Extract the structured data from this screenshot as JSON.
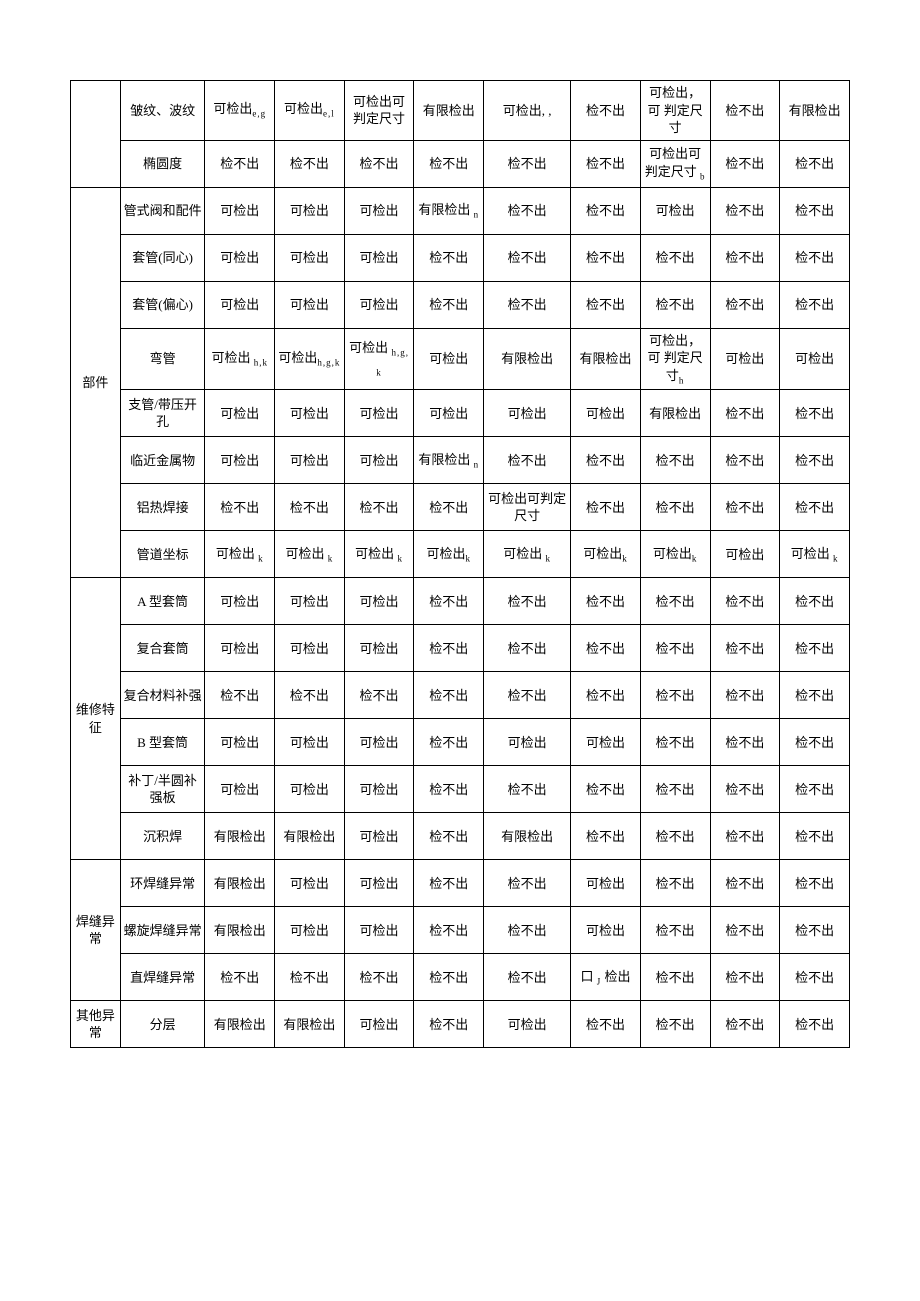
{
  "groups": [
    {
      "category": "",
      "rows": [
        {
          "name": "皱纹、波纹",
          "cells": [
            "可检出<span class='sup'>e,g</span>",
            "可检出<span class='sup'>e,l</span>",
            "可检出可判定尺寸",
            "有限检出",
            "可检出, ,",
            "检不出",
            "可检出，可 判定尺寸",
            "检不出",
            "有限检出"
          ]
        },
        {
          "name": "椭圆度",
          "cells": [
            "检不出",
            "检不出",
            "检不出",
            "检不出",
            "检不出",
            "检不出",
            "可检出可判定尺寸<span class='sup'> b</span>",
            "检不出",
            "检不出"
          ]
        }
      ]
    },
    {
      "category": "部件",
      "rows": [
        {
          "name": "管式阀和配件",
          "cells": [
            "可检出",
            "可检出",
            "可检出",
            "有限检出<span class='sup'> n</span>",
            "检不出",
            "检不出",
            "可检出",
            "检不出",
            "检不出"
          ]
        },
        {
          "name": "套管(同心)",
          "cells": [
            "可检出",
            "可检出",
            "可检出",
            "检不出",
            "检不出",
            "检不出",
            "检不出",
            "检不出",
            "检不出"
          ]
        },
        {
          "name": "套管(偏心)",
          "cells": [
            "可检出",
            "可检出",
            "可检出",
            "检不出",
            "检不出",
            "检不出",
            "检不出",
            "检不出",
            "检不出"
          ]
        },
        {
          "name": "弯管",
          "cells": [
            "可检出<span class='sup'> h,k</span>",
            "可检出<span class='sup'>h,g,k</span>",
            "可检出<span class='sup'> h,g,k</span>",
            "可检出",
            "有限检出",
            "有限检出",
            "可检出，可 判定尺寸<span class='sup'>h</span>",
            "可检出",
            "可检出"
          ]
        },
        {
          "name": "支管/带压开孔",
          "cells": [
            "可检出",
            "可检出",
            "可检出",
            "可检出",
            "可检出",
            "可检出",
            "有限检出",
            "检不出",
            "检不出"
          ]
        },
        {
          "name": "临近金属物",
          "cells": [
            "可检出",
            "可检出",
            "可检出",
            "有限检出<span class='sup'> n</span>",
            "检不出",
            "检不出",
            "检不出",
            "检不出",
            "检不出"
          ]
        },
        {
          "name": "铝热焊接",
          "cells": [
            "检不出",
            "检不出",
            "检不出",
            "检不出",
            "可检出可判定尺寸",
            "检不出",
            "检不出",
            "检不出",
            "检不出"
          ]
        },
        {
          "name": "管道坐标",
          "cells": [
            "可检出<span class='sup'> k</span>",
            "可检出<span class='sup'> k</span>",
            "可检出<span class='sup'> k</span>",
            "可检出<span class='sup'>k</span>",
            "可检出<span class='sup'> k</span>",
            "可检出<span class='sup'>k</span>",
            "可检出<span class='sup'>k</span>",
            "可检出",
            "可检出<span class='sup'> k</span>"
          ]
        }
      ]
    },
    {
      "category": "维修特征",
      "rows": [
        {
          "name": "A 型套筒",
          "cells": [
            "可检出",
            "可检出",
            "可检出",
            "检不出",
            "检不出",
            "检不出",
            "检不出",
            "检不出",
            "检不出"
          ]
        },
        {
          "name": "复合套筒",
          "cells": [
            "可检出",
            "可检出",
            "可检出",
            "检不出",
            "检不出",
            "检不出",
            "检不出",
            "检不出",
            "检不出"
          ]
        },
        {
          "name": "复合材料补强",
          "cells": [
            "检不出",
            "检不出",
            "检不出",
            "检不出",
            "检不出",
            "检不出",
            "检不出",
            "检不出",
            "检不出"
          ]
        },
        {
          "name": "B 型套筒",
          "cells": [
            "可检出",
            "可检出",
            "可检出",
            "检不出",
            "可检出",
            "可检出",
            "检不出",
            "检不出",
            "检不出"
          ]
        },
        {
          "name": "补丁/半圆补强板",
          "cells": [
            "可检出",
            "可检出",
            "可检出",
            "检不出",
            "检不出",
            "检不出",
            "检不出",
            "检不出",
            "检不出"
          ]
        },
        {
          "name": "沉积焊",
          "cells": [
            "有限检出",
            "有限检出",
            "可检出",
            "检不出",
            "有限检出",
            "检不出",
            "检不出",
            "检不出",
            "检不出"
          ]
        }
      ]
    },
    {
      "category": "焊缝异常",
      "rows": [
        {
          "name": "环焊缝异常",
          "cells": [
            "有限检出",
            "可检出",
            "可检出",
            "检不出",
            "检不出",
            "可检出",
            "检不出",
            "检不出",
            "检不出"
          ]
        },
        {
          "name": "螺旋焊缝异常",
          "cells": [
            "有限检出",
            "可检出",
            "可检出",
            "检不出",
            "检不出",
            "可检出",
            "检不出",
            "检不出",
            "检不出"
          ]
        },
        {
          "name": "直焊缝异常",
          "cells": [
            "检不出",
            "检不出",
            "检不出",
            "检不出",
            "检不出",
            "口 <span class='sup'>J</span> 检出",
            "检不出",
            "检不出",
            "检不出"
          ]
        }
      ]
    },
    {
      "category": "其他异常",
      "rows": [
        {
          "name": "分层",
          "cells": [
            "有限检出",
            "有限检出",
            "可检出",
            "检不出",
            "可检出",
            "检不出",
            "检不出",
            "检不出",
            "检不出"
          ]
        }
      ]
    }
  ]
}
